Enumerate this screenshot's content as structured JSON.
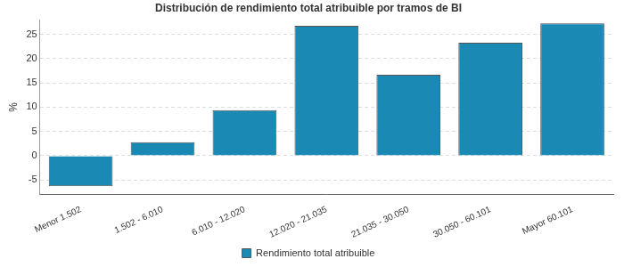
{
  "chart_data": {
    "type": "bar",
    "title": "Distribución de rendimiento total atribuible por tramos de BI",
    "y_label": "%",
    "categories": [
      "Menor 1.502",
      "1.502 - 6.010",
      "6.010 - 12.020",
      "12.020 - 21.035",
      "21.035 - 30.050",
      "30.050 - 60.101",
      "Mayor 60.101"
    ],
    "series": [
      {
        "name": "Rendimiento total atribuible",
        "color": "#1a8ab5",
        "values": [
          -6.3,
          2.8,
          9.4,
          26.8,
          16.7,
          23.3,
          27.3
        ]
      }
    ],
    "ylim": [
      -8,
      28
    ],
    "yticks": [
      -5,
      0,
      5,
      10,
      15,
      20,
      25
    ],
    "grid": true,
    "legend": "bottom"
  }
}
